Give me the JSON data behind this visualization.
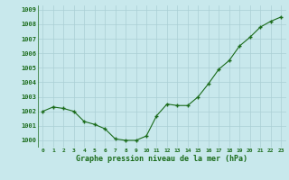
{
  "x": [
    0,
    1,
    2,
    3,
    4,
    5,
    6,
    7,
    8,
    9,
    10,
    11,
    12,
    13,
    14,
    15,
    16,
    17,
    18,
    19,
    20,
    21,
    22,
    23
  ],
  "y": [
    1002.0,
    1002.3,
    1002.2,
    1002.0,
    1001.3,
    1001.1,
    1000.8,
    1000.1,
    1000.0,
    1000.0,
    1000.3,
    1001.7,
    1002.5,
    1002.4,
    1002.4,
    1003.0,
    1003.9,
    1004.9,
    1005.5,
    1006.5,
    1007.1,
    1007.8,
    1008.2,
    1008.5
  ],
  "line_color": "#1a6b1a",
  "marker": "+",
  "marker_color": "#1a6b1a",
  "bg_color": "#c8e8ec",
  "grid_color": "#aacfd4",
  "xlabel": "Graphe pression niveau de la mer (hPa)",
  "xlabel_color": "#1a6b1a",
  "tick_color": "#1a6b1a",
  "ylim": [
    999.5,
    1009.3
  ],
  "yticks": [
    1000,
    1001,
    1002,
    1003,
    1004,
    1005,
    1006,
    1007,
    1008,
    1009
  ],
  "xticks": [
    0,
    1,
    2,
    3,
    4,
    5,
    6,
    7,
    8,
    9,
    10,
    11,
    12,
    13,
    14,
    15,
    16,
    17,
    18,
    19,
    20,
    21,
    22,
    23
  ],
  "xlim": [
    -0.5,
    23.5
  ]
}
